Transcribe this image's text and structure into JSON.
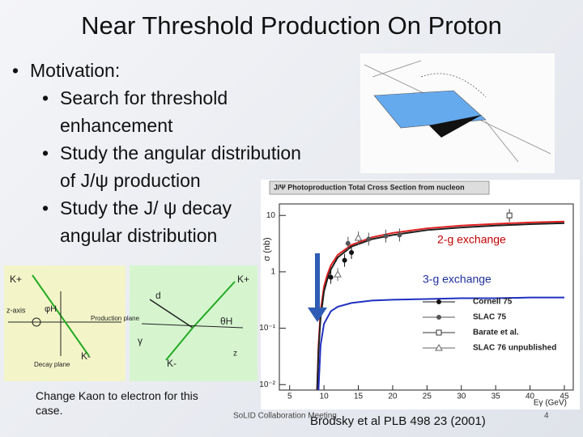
{
  "slide": {
    "title": "Near Threshold Production On Proton",
    "bullets": [
      {
        "level": 0,
        "lines": [
          "Motivation:"
        ]
      },
      {
        "level": 1,
        "lines": [
          "Search for threshold",
          "enhancement"
        ]
      },
      {
        "level": 1,
        "lines": [
          "Study the angular distribution",
          "of J/ψ production"
        ]
      },
      {
        "level": 1,
        "lines": [
          "Study the J/ ψ decay",
          "angular distribution"
        ]
      }
    ],
    "note": [
      "Change Kaon to electron for this",
      "case."
    ],
    "footer": "SoLID Collaboration Meeting",
    "page_number": "4",
    "reference": "Brodsky et al PLB 498 23 (2001)",
    "diagram_left": [
      "K+",
      "z-axis",
      "φH",
      "Production plane",
      "K-",
      "Decay plane"
    ],
    "diagram_right": [
      "K+",
      "d",
      "θH",
      "γ",
      "K-",
      "z"
    ]
  },
  "chart_data": {
    "type": "line",
    "title": "J/Ψ Photoproduction Total Cross Section from nucleon",
    "ylabel": "σ (nb)",
    "xlabel": "Eγ (GeV)",
    "log_y": true,
    "xlim": [
      3.5,
      46.3
    ],
    "ylim": [
      0.008,
      16
    ],
    "xticks": [
      5,
      10,
      15,
      20,
      25,
      30,
      35,
      40,
      45
    ],
    "yticks": [
      {
        "value": 10,
        "label": "10"
      },
      {
        "value": 1,
        "label": "1"
      },
      {
        "value": 0.1,
        "label": "10⁻¹"
      },
      {
        "value": 0.01,
        "label": "10⁻²"
      }
    ],
    "annotations": [
      {
        "text": "2-g exchange",
        "color": "#c00000"
      },
      {
        "text": "3-g exchange",
        "color": "#1f2f9f"
      }
    ],
    "series": [
      {
        "style": "line",
        "color": "#e02020",
        "x": [
          9.0,
          9.2,
          9.5,
          10,
          10.5,
          11,
          12,
          14,
          17,
          20,
          25,
          30,
          35,
          40,
          45
        ],
        "values": [
          0.008,
          0.05,
          0.2,
          0.55,
          0.9,
          1.3,
          2.0,
          3.0,
          4.1,
          4.9,
          5.9,
          6.6,
          7.1,
          7.5,
          7.8
        ]
      },
      {
        "style": "line",
        "color": "#202020",
        "x": [
          9.0,
          9.2,
          9.5,
          10,
          10.5,
          11,
          12,
          14,
          17,
          20,
          25,
          30,
          35,
          40,
          45
        ],
        "values": [
          0.008,
          0.04,
          0.15,
          0.45,
          0.75,
          1.1,
          1.8,
          2.8,
          3.8,
          4.5,
          5.5,
          6.1,
          6.6,
          7.0,
          7.3
        ]
      },
      {
        "style": "line",
        "color": "#2030c0",
        "x": [
          9.2,
          9.5,
          10,
          11,
          12,
          14,
          17,
          20,
          25,
          30,
          35,
          40,
          45
        ],
        "values": [
          0.008,
          0.05,
          0.12,
          0.2,
          0.24,
          0.28,
          0.31,
          0.32,
          0.33,
          0.34,
          0.34,
          0.35,
          0.35
        ]
      },
      {
        "name": "Cornell 75",
        "style": "circle",
        "color": "#111111",
        "x": [
          11.0,
          13.0,
          14.0
        ],
        "values": [
          0.8,
          1.6,
          2.2
        ]
      },
      {
        "name": "SLAC 75",
        "style": "circle",
        "color": "#555555",
        "x": [
          13.5,
          16.5,
          19,
          21
        ],
        "values": [
          3.2,
          3.8,
          4.3,
          4.5
        ]
      },
      {
        "name": "Barate et al.",
        "style": "square",
        "color": "#333333",
        "x": [
          37
        ],
        "values": [
          10
        ]
      },
      {
        "name": "SLAC 76 unpublished",
        "style": "triangle",
        "color": "#666666",
        "x": [
          12,
          15
        ],
        "values": [
          0.9,
          4
        ]
      }
    ]
  }
}
